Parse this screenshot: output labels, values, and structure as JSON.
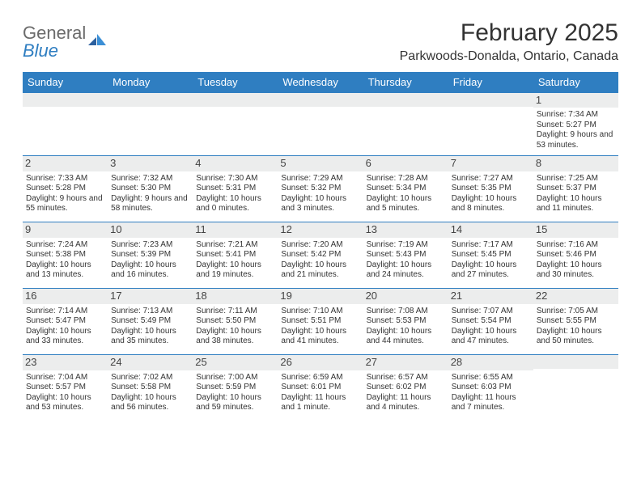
{
  "logo": {
    "line1": "General",
    "line2": "Blue"
  },
  "title": "February 2025",
  "subtitle": "Parkwoods-Donalda, Ontario, Canada",
  "header_bg": "#2f7ec1",
  "header_fg": "#ffffff",
  "daynum_bg": "#eceded",
  "row_border": "#2f7ec1",
  "days": [
    "Sunday",
    "Monday",
    "Tuesday",
    "Wednesday",
    "Thursday",
    "Friday",
    "Saturday"
  ],
  "weeks": [
    [
      {
        "n": "",
        "sr": "",
        "ss": "",
        "dl": ""
      },
      {
        "n": "",
        "sr": "",
        "ss": "",
        "dl": ""
      },
      {
        "n": "",
        "sr": "",
        "ss": "",
        "dl": ""
      },
      {
        "n": "",
        "sr": "",
        "ss": "",
        "dl": ""
      },
      {
        "n": "",
        "sr": "",
        "ss": "",
        "dl": ""
      },
      {
        "n": "",
        "sr": "",
        "ss": "",
        "dl": ""
      },
      {
        "n": "1",
        "sr": "Sunrise: 7:34 AM",
        "ss": "Sunset: 5:27 PM",
        "dl": "Daylight: 9 hours and 53 minutes."
      }
    ],
    [
      {
        "n": "2",
        "sr": "Sunrise: 7:33 AM",
        "ss": "Sunset: 5:28 PM",
        "dl": "Daylight: 9 hours and 55 minutes."
      },
      {
        "n": "3",
        "sr": "Sunrise: 7:32 AM",
        "ss": "Sunset: 5:30 PM",
        "dl": "Daylight: 9 hours and 58 minutes."
      },
      {
        "n": "4",
        "sr": "Sunrise: 7:30 AM",
        "ss": "Sunset: 5:31 PM",
        "dl": "Daylight: 10 hours and 0 minutes."
      },
      {
        "n": "5",
        "sr": "Sunrise: 7:29 AM",
        "ss": "Sunset: 5:32 PM",
        "dl": "Daylight: 10 hours and 3 minutes."
      },
      {
        "n": "6",
        "sr": "Sunrise: 7:28 AM",
        "ss": "Sunset: 5:34 PM",
        "dl": "Daylight: 10 hours and 5 minutes."
      },
      {
        "n": "7",
        "sr": "Sunrise: 7:27 AM",
        "ss": "Sunset: 5:35 PM",
        "dl": "Daylight: 10 hours and 8 minutes."
      },
      {
        "n": "8",
        "sr": "Sunrise: 7:25 AM",
        "ss": "Sunset: 5:37 PM",
        "dl": "Daylight: 10 hours and 11 minutes."
      }
    ],
    [
      {
        "n": "9",
        "sr": "Sunrise: 7:24 AM",
        "ss": "Sunset: 5:38 PM",
        "dl": "Daylight: 10 hours and 13 minutes."
      },
      {
        "n": "10",
        "sr": "Sunrise: 7:23 AM",
        "ss": "Sunset: 5:39 PM",
        "dl": "Daylight: 10 hours and 16 minutes."
      },
      {
        "n": "11",
        "sr": "Sunrise: 7:21 AM",
        "ss": "Sunset: 5:41 PM",
        "dl": "Daylight: 10 hours and 19 minutes."
      },
      {
        "n": "12",
        "sr": "Sunrise: 7:20 AM",
        "ss": "Sunset: 5:42 PM",
        "dl": "Daylight: 10 hours and 21 minutes."
      },
      {
        "n": "13",
        "sr": "Sunrise: 7:19 AM",
        "ss": "Sunset: 5:43 PM",
        "dl": "Daylight: 10 hours and 24 minutes."
      },
      {
        "n": "14",
        "sr": "Sunrise: 7:17 AM",
        "ss": "Sunset: 5:45 PM",
        "dl": "Daylight: 10 hours and 27 minutes."
      },
      {
        "n": "15",
        "sr": "Sunrise: 7:16 AM",
        "ss": "Sunset: 5:46 PM",
        "dl": "Daylight: 10 hours and 30 minutes."
      }
    ],
    [
      {
        "n": "16",
        "sr": "Sunrise: 7:14 AM",
        "ss": "Sunset: 5:47 PM",
        "dl": "Daylight: 10 hours and 33 minutes."
      },
      {
        "n": "17",
        "sr": "Sunrise: 7:13 AM",
        "ss": "Sunset: 5:49 PM",
        "dl": "Daylight: 10 hours and 35 minutes."
      },
      {
        "n": "18",
        "sr": "Sunrise: 7:11 AM",
        "ss": "Sunset: 5:50 PM",
        "dl": "Daylight: 10 hours and 38 minutes."
      },
      {
        "n": "19",
        "sr": "Sunrise: 7:10 AM",
        "ss": "Sunset: 5:51 PM",
        "dl": "Daylight: 10 hours and 41 minutes."
      },
      {
        "n": "20",
        "sr": "Sunrise: 7:08 AM",
        "ss": "Sunset: 5:53 PM",
        "dl": "Daylight: 10 hours and 44 minutes."
      },
      {
        "n": "21",
        "sr": "Sunrise: 7:07 AM",
        "ss": "Sunset: 5:54 PM",
        "dl": "Daylight: 10 hours and 47 minutes."
      },
      {
        "n": "22",
        "sr": "Sunrise: 7:05 AM",
        "ss": "Sunset: 5:55 PM",
        "dl": "Daylight: 10 hours and 50 minutes."
      }
    ],
    [
      {
        "n": "23",
        "sr": "Sunrise: 7:04 AM",
        "ss": "Sunset: 5:57 PM",
        "dl": "Daylight: 10 hours and 53 minutes."
      },
      {
        "n": "24",
        "sr": "Sunrise: 7:02 AM",
        "ss": "Sunset: 5:58 PM",
        "dl": "Daylight: 10 hours and 56 minutes."
      },
      {
        "n": "25",
        "sr": "Sunrise: 7:00 AM",
        "ss": "Sunset: 5:59 PM",
        "dl": "Daylight: 10 hours and 59 minutes."
      },
      {
        "n": "26",
        "sr": "Sunrise: 6:59 AM",
        "ss": "Sunset: 6:01 PM",
        "dl": "Daylight: 11 hours and 1 minute."
      },
      {
        "n": "27",
        "sr": "Sunrise: 6:57 AM",
        "ss": "Sunset: 6:02 PM",
        "dl": "Daylight: 11 hours and 4 minutes."
      },
      {
        "n": "28",
        "sr": "Sunrise: 6:55 AM",
        "ss": "Sunset: 6:03 PM",
        "dl": "Daylight: 11 hours and 7 minutes."
      },
      {
        "n": "",
        "sr": "",
        "ss": "",
        "dl": ""
      }
    ]
  ]
}
